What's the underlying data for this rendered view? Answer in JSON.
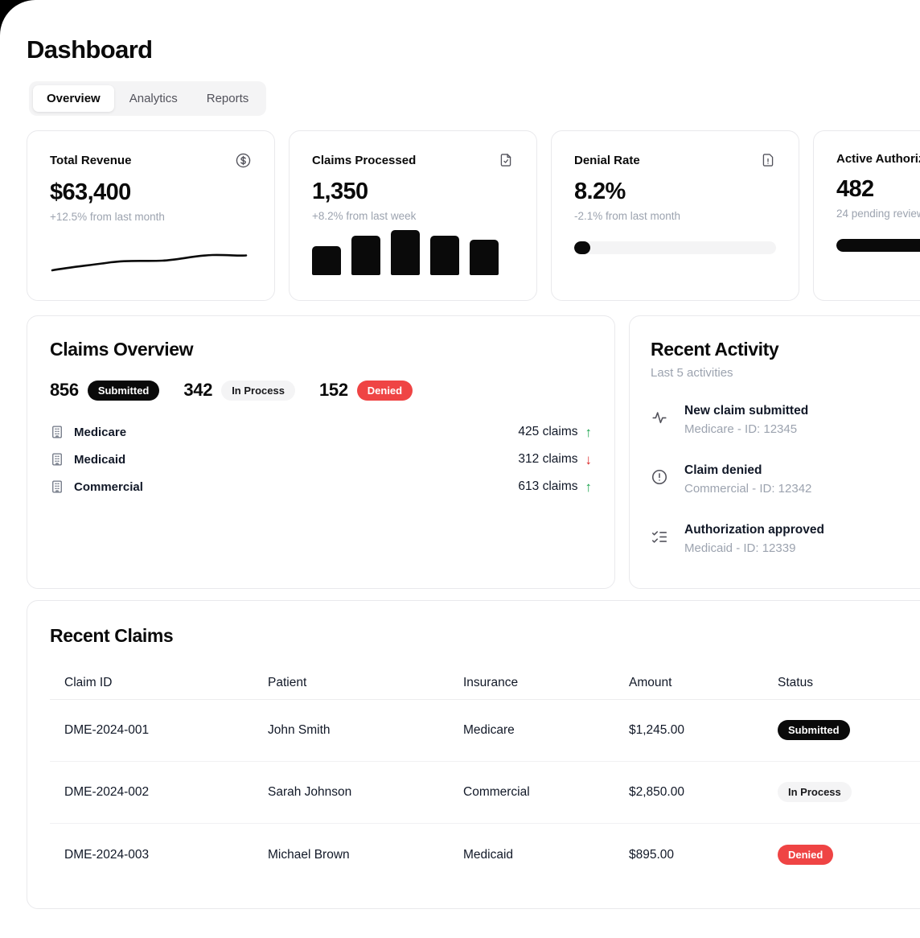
{
  "page": {
    "title": "Dashboard"
  },
  "tabs": {
    "items": [
      {
        "label": "Overview"
      },
      {
        "label": "Analytics"
      },
      {
        "label": "Reports"
      }
    ]
  },
  "stat_cards": [
    {
      "label": "Total Revenue",
      "value": "$63,400",
      "sub": "+12.5% from last month",
      "icon": "circle-dollar-icon",
      "visual": "sparkline"
    },
    {
      "label": "Claims Processed",
      "value": "1,350",
      "sub": "+8.2% from last week",
      "icon": "file-check-icon",
      "visual": "bars",
      "bars": [
        62,
        85,
        96,
        85,
        76
      ]
    },
    {
      "label": "Denial Rate",
      "value": "8.2%",
      "sub": "-2.1% from last month",
      "icon": "file-warning-icon",
      "visual": "progress",
      "progress_pct": 8
    },
    {
      "label": "Active Authorizations",
      "value": "482",
      "sub": "24 pending review",
      "visual": "progress",
      "progress_pct": 92
    }
  ],
  "claims_overview": {
    "title": "Claims Overview",
    "stats": [
      {
        "value": "856",
        "label": "Submitted"
      },
      {
        "value": "342",
        "label": "In Process"
      },
      {
        "value": "152",
        "label": "Denied"
      }
    ],
    "insurers": [
      {
        "name": "Medicare",
        "claims": "425 claims",
        "trend": "up"
      },
      {
        "name": "Medicaid",
        "claims": "312 claims",
        "trend": "down"
      },
      {
        "name": "Commercial",
        "claims": "613 claims",
        "trend": "up"
      }
    ]
  },
  "recent_activity": {
    "title": "Recent Activity",
    "subtitle": "Last 5 activities",
    "items": [
      {
        "icon": "activity-icon",
        "title": "New claim submitted",
        "subtitle": "Medicare - ID: 12345"
      },
      {
        "icon": "alert-circle-icon",
        "title": "Claim denied",
        "subtitle": "Commercial - ID: 12342"
      },
      {
        "icon": "list-checks-icon",
        "title": "Authorization approved",
        "subtitle": "Medicaid - ID: 12339"
      }
    ]
  },
  "recent_claims": {
    "title": "Recent Claims",
    "columns": [
      "Claim ID",
      "Patient",
      "Insurance",
      "Amount",
      "Status"
    ],
    "rows": [
      {
        "claim_id": "DME-2024-001",
        "patient": "John Smith",
        "insurance": "Medicare",
        "amount": "$1,245.00",
        "status": "Submitted"
      },
      {
        "claim_id": "DME-2024-002",
        "patient": "Sarah Johnson",
        "insurance": "Commercial",
        "amount": "$2,850.00",
        "status": "In Process"
      },
      {
        "claim_id": "DME-2024-003",
        "patient": "Michael Brown",
        "insurance": "Medicaid",
        "amount": "$895.00",
        "status": "Denied"
      }
    ]
  },
  "glyphs": {
    "arrow_up": "↑",
    "arrow_down": "↓"
  },
  "colors": {
    "ink": "#0a0a0a",
    "muted_text": "#9ca3af",
    "header_text": "#6b7280",
    "pill_light_bg": "#f4f4f5",
    "denied_red": "#ef4444",
    "trend_up_green": "#16a34a",
    "trend_down_red": "#dc2626"
  }
}
